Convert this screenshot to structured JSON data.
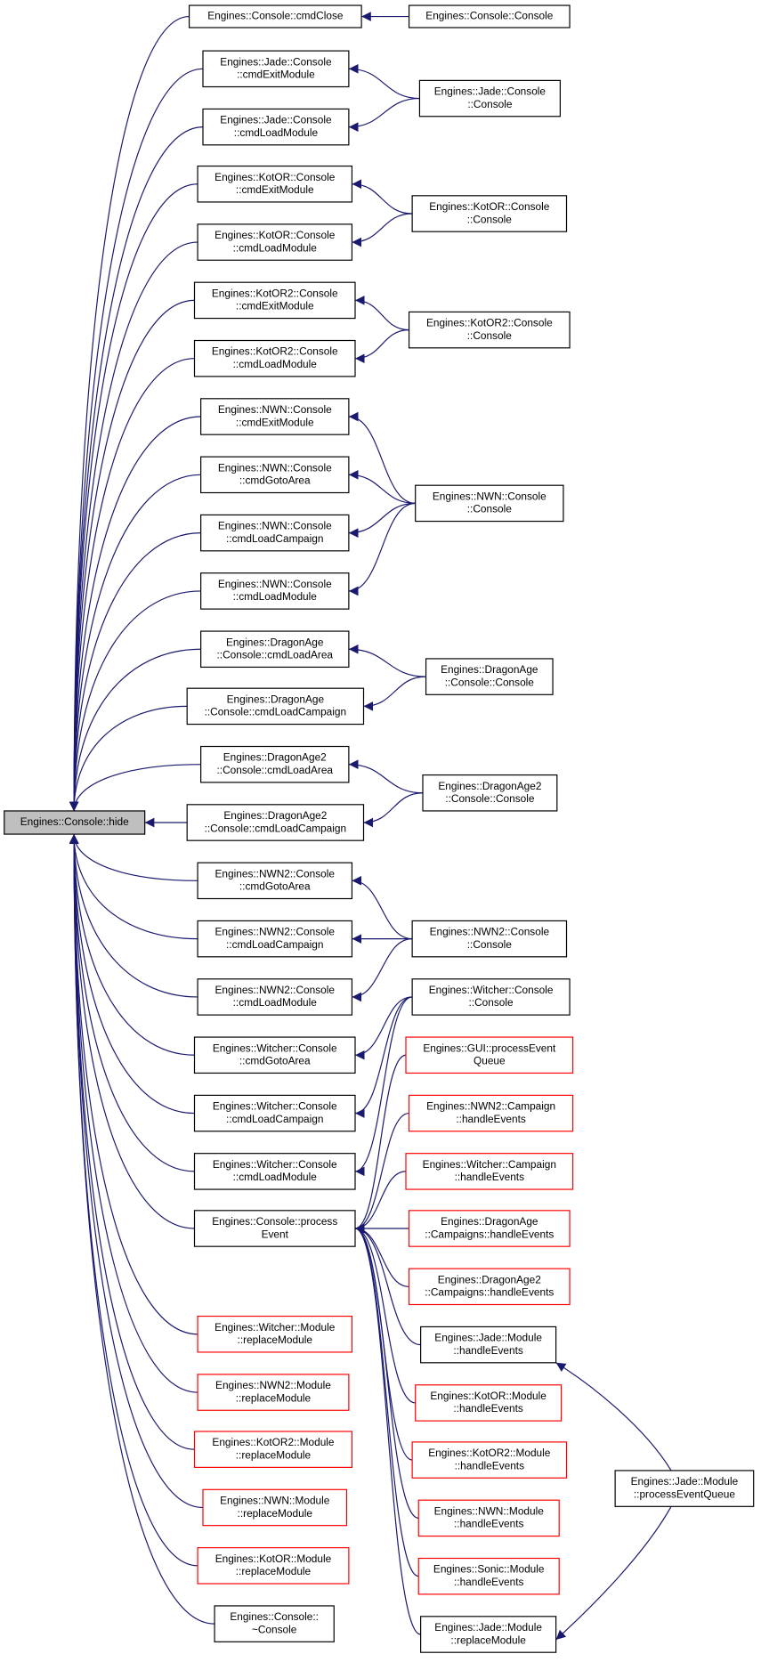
{
  "nodes": [
    {
      "label": [
        "Engines::Console::hide"
      ]
    },
    {
      "label": [
        "Engines::Console::cmdClose"
      ]
    },
    {
      "label": [
        "Engines::Jade::Console",
        "::cmdExitModule"
      ]
    },
    {
      "label": [
        "Engines::Jade::Console",
        "::cmdLoadModule"
      ]
    },
    {
      "label": [
        "Engines::KotOR::Console",
        "::cmdExitModule"
      ]
    },
    {
      "label": [
        "Engines::KotOR::Console",
        "::cmdLoadModule"
      ]
    },
    {
      "label": [
        "Engines::KotOR2::Console",
        "::cmdExitModule"
      ]
    },
    {
      "label": [
        "Engines::KotOR2::Console",
        "::cmdLoadModule"
      ]
    },
    {
      "label": [
        "Engines::NWN::Console",
        "::cmdExitModule"
      ]
    },
    {
      "label": [
        "Engines::NWN::Console",
        "::cmdGotoArea"
      ]
    },
    {
      "label": [
        "Engines::NWN::Console",
        "::cmdLoadCampaign"
      ]
    },
    {
      "label": [
        "Engines::NWN::Console",
        "::cmdLoadModule"
      ]
    },
    {
      "label": [
        "Engines::DragonAge",
        "::Console::cmdLoadArea"
      ]
    },
    {
      "label": [
        "Engines::DragonAge",
        "::Console::cmdLoadCampaign"
      ]
    },
    {
      "label": [
        "Engines::DragonAge2",
        "::Console::cmdLoadArea"
      ]
    },
    {
      "label": [
        "Engines::DragonAge2",
        "::Console::cmdLoadCampaign"
      ]
    },
    {
      "label": [
        "Engines::NWN2::Console",
        "::cmdGotoArea"
      ]
    },
    {
      "label": [
        "Engines::NWN2::Console",
        "::cmdLoadCampaign"
      ]
    },
    {
      "label": [
        "Engines::NWN2::Console",
        "::cmdLoadModule"
      ]
    },
    {
      "label": [
        "Engines::Witcher::Console",
        "::cmdGotoArea"
      ]
    },
    {
      "label": [
        "Engines::Witcher::Console",
        "::cmdLoadCampaign"
      ]
    },
    {
      "label": [
        "Engines::Witcher::Console",
        "::cmdLoadModule"
      ]
    },
    {
      "label": [
        "Engines::Console::process",
        "Event"
      ]
    },
    {
      "label": [
        "Engines::Witcher::Module",
        "::replaceModule"
      ]
    },
    {
      "label": [
        "Engines::NWN2::Module",
        "::replaceModule"
      ]
    },
    {
      "label": [
        "Engines::KotOR2::Module",
        "::replaceModule"
      ]
    },
    {
      "label": [
        "Engines::NWN::Module",
        "::replaceModule"
      ]
    },
    {
      "label": [
        "Engines::KotOR::Module",
        "::replaceModule"
      ]
    },
    {
      "label": [
        "Engines::Console::",
        "~Console"
      ]
    },
    {
      "label": [
        "Engines::Console::Console"
      ]
    },
    {
      "label": [
        "Engines::Jade::Console",
        "::Console"
      ]
    },
    {
      "label": [
        "Engines::KotOR::Console",
        "::Console"
      ]
    },
    {
      "label": [
        "Engines::KotOR2::Console",
        "::Console"
      ]
    },
    {
      "label": [
        "Engines::NWN::Console",
        "::Console"
      ]
    },
    {
      "label": [
        "Engines::DragonAge",
        "::Console::Console"
      ]
    },
    {
      "label": [
        "Engines::DragonAge2",
        "::Console::Console"
      ]
    },
    {
      "label": [
        "Engines::NWN2::Console",
        "::Console"
      ]
    },
    {
      "label": [
        "Engines::Witcher::Console",
        "::Console"
      ]
    },
    {
      "label": [
        "Engines::GUI::processEvent",
        "Queue"
      ]
    },
    {
      "label": [
        "Engines::NWN2::Campaign",
        "::handleEvents"
      ]
    },
    {
      "label": [
        "Engines::Witcher::Campaign",
        "::handleEvents"
      ]
    },
    {
      "label": [
        "Engines::DragonAge",
        "::Campaigns::handleEvents"
      ]
    },
    {
      "label": [
        "Engines::DragonAge2",
        "::Campaigns::handleEvents"
      ]
    },
    {
      "label": [
        "Engines::Jade::Module",
        "::handleEvents"
      ]
    },
    {
      "label": [
        "Engines::KotOR::Module",
        "::handleEvents"
      ]
    },
    {
      "label": [
        "Engines::KotOR2::Module",
        "::handleEvents"
      ]
    },
    {
      "label": [
        "Engines::NWN::Module",
        "::handleEvents"
      ]
    },
    {
      "label": [
        "Engines::Sonic::Module",
        "::handleEvents"
      ]
    },
    {
      "label": [
        "Engines::Jade::Module",
        "::replaceModule"
      ]
    },
    {
      "label": [
        "Engines::Jade::Module",
        "::processEventQueue"
      ]
    }
  ]
}
